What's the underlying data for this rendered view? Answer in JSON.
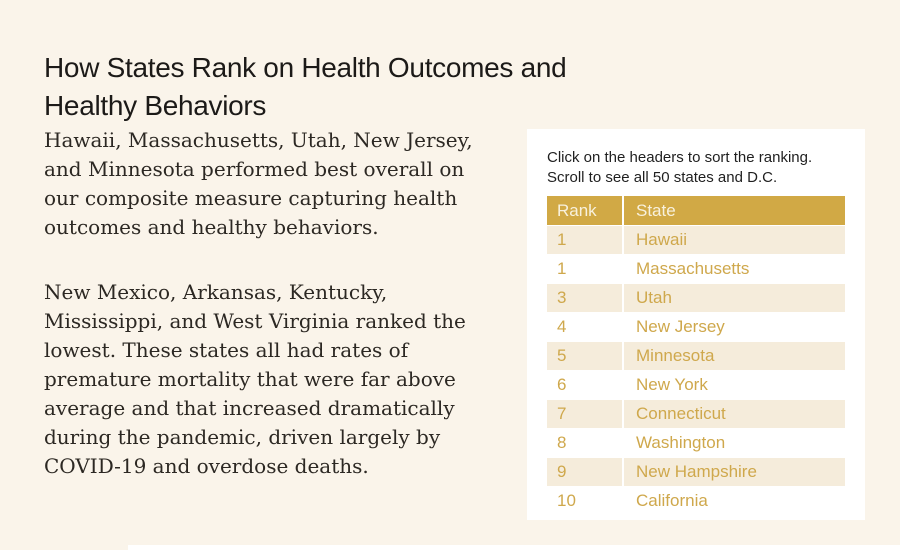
{
  "colors": {
    "page_bg": "#faf4ea",
    "panel_bg": "#ffffff",
    "title_text": "#1c1a18",
    "body_text": "#2c2823",
    "caption_text": "#1f1f1f",
    "table_header_bg": "#d1a945",
    "table_header_text": "#f8f1dd",
    "row_alt_bg": "#f5ecdb",
    "accent_text": "#cfa84c"
  },
  "page": {
    "title_line1": "How States Rank on Health Outcomes and",
    "title_line2": "Healthy Behaviors",
    "paragraph1": "Hawaii, Massachusetts, Utah, New Jersey, and Minnesota performed best overall on our composite measure capturing health outcomes and healthy behaviors.",
    "paragraph2": "New Mexico, Arkansas, Kentucky, Mississippi, and West Virginia ranked the lowest. These states all had rates of premature mortality that were far above average and that increased dramatically during the pandemic, driven largely by COVID-19 and overdose deaths."
  },
  "panel": {
    "instructions_line1": "Click on the headers to sort the ranking.",
    "instructions_line2": "Scroll to see all 50 states and D.C."
  },
  "chart_data": {
    "type": "table",
    "title": "How States Rank on Health Outcomes and Healthy Behaviors",
    "columns": [
      "Rank",
      "State"
    ],
    "rows": [
      [
        "1",
        "Hawaii"
      ],
      [
        "1",
        "Massachusetts"
      ],
      [
        "3",
        "Utah"
      ],
      [
        "4",
        "New Jersey"
      ],
      [
        "5",
        "Minnesota"
      ],
      [
        "6",
        "New York"
      ],
      [
        "7",
        "Connecticut"
      ],
      [
        "8",
        "Washington"
      ],
      [
        "9",
        "New Hampshire"
      ],
      [
        "10",
        "California"
      ]
    ]
  }
}
